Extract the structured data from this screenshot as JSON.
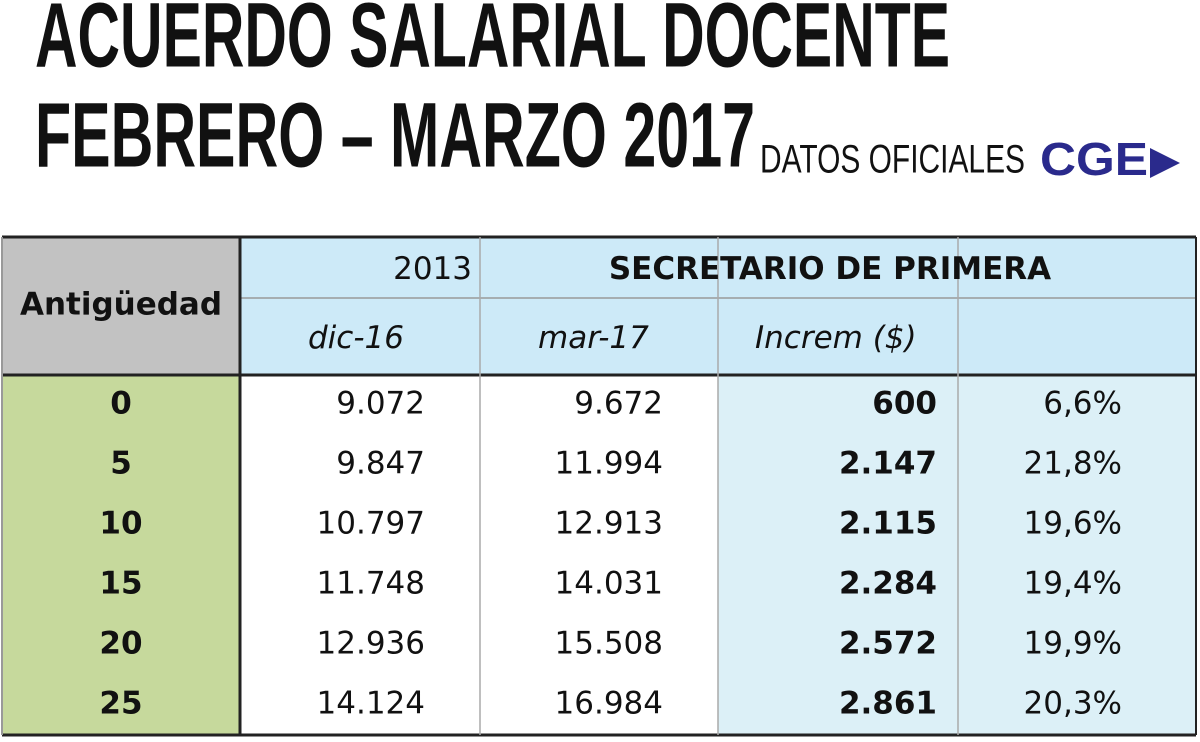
{
  "header": {
    "title_line1": "ACUERDO SALARIAL DOCENTE",
    "title_line2": "FEBRERO – MARZO 2017",
    "subtitle": "DATOS OFICIALES",
    "logo": "CGE"
  },
  "table": {
    "header_row1": {
      "rowhead": "Antigüedad",
      "year": "2013",
      "group": "SECRETARIO DE PRIMERA"
    },
    "header_row2": [
      "dic-16",
      "mar-17",
      "Increm ($)"
    ],
    "rows": [
      [
        "0",
        "9.072",
        "9.672",
        "600",
        "6,6%"
      ],
      [
        "5",
        "9.847",
        "11.994",
        "2.147",
        "21,8%"
      ],
      [
        "10",
        "10.797",
        "12.913",
        "2.115",
        "19,6%"
      ],
      [
        "15",
        "11.748",
        "14.031",
        "2.284",
        "19,4%"
      ],
      [
        "20",
        "12.936",
        "15.508",
        "2.572",
        "19,9%"
      ],
      [
        "25",
        "14.124",
        "16.984",
        "2.861",
        "20,3%"
      ]
    ]
  }
}
